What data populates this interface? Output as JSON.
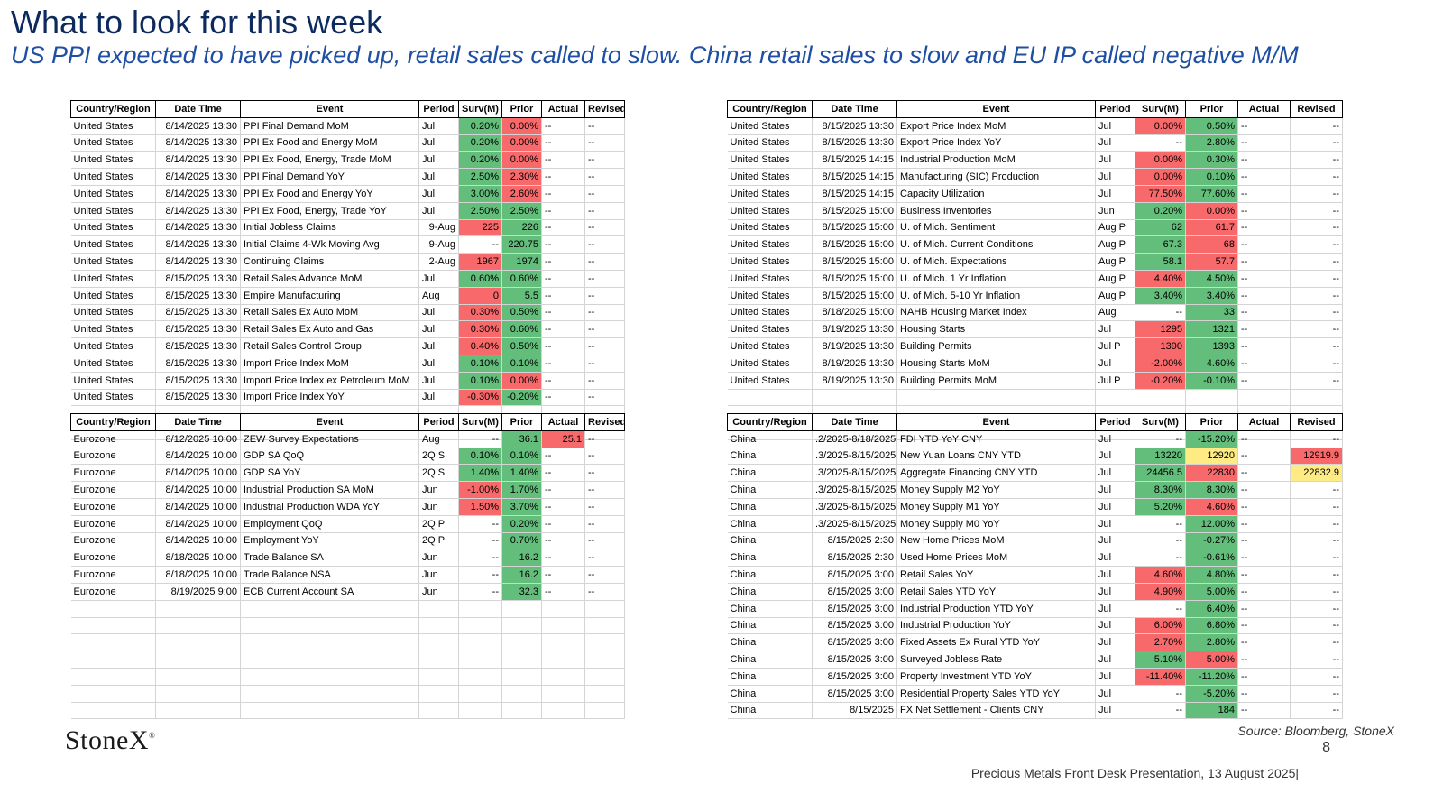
{
  "title": "What to look for this week",
  "subtitle": "US PPI expected to have picked up, retail sales called to slow.  China retail sales to slow and EU  IP called negative M/M",
  "headers": [
    "Country/Region",
    "Date Time",
    "Event",
    "Period",
    "Surv(M)",
    "Prior",
    "Actual",
    "Revised"
  ],
  "tables": {
    "top_left": [
      [
        "United States",
        "8/14/2025 13:30",
        "PPI Final Demand MoM",
        "Jul",
        "0.20%",
        "0.00%",
        "--",
        "--"
      ],
      [
        "United States",
        "8/14/2025 13:30",
        "PPI Ex Food and Energy MoM",
        "Jul",
        "0.20%",
        "0.00%",
        "--",
        "--"
      ],
      [
        "United States",
        "8/14/2025 13:30",
        "PPI Ex Food, Energy, Trade MoM",
        "Jul",
        "0.20%",
        "0.00%",
        "--",
        "--"
      ],
      [
        "United States",
        "8/14/2025 13:30",
        "PPI Final Demand YoY",
        "Jul",
        "2.50%",
        "2.30%",
        "--",
        "--"
      ],
      [
        "United States",
        "8/14/2025 13:30",
        "PPI Ex Food and Energy YoY",
        "Jul",
        "3.00%",
        "2.60%",
        "--",
        "--"
      ],
      [
        "United States",
        "8/14/2025 13:30",
        "PPI Ex Food, Energy, Trade YoY",
        "Jul",
        "2.50%",
        "2.50%",
        "--",
        "--"
      ],
      [
        "United States",
        "8/14/2025 13:30",
        "Initial Jobless Claims",
        "9-Aug",
        "225",
        "226",
        "--",
        "--"
      ],
      [
        "United States",
        "8/14/2025 13:30",
        "Initial Claims 4-Wk Moving Avg",
        "9-Aug",
        "--",
        "220.75",
        "--",
        "--"
      ],
      [
        "United States",
        "8/14/2025 13:30",
        "Continuing Claims",
        "2-Aug",
        "1967",
        "1974",
        "--",
        "--"
      ],
      [
        "United States",
        "8/15/2025 13:30",
        "Retail Sales Advance MoM",
        "Jul",
        "0.60%",
        "0.60%",
        "--",
        "--"
      ],
      [
        "United States",
        "8/15/2025 13:30",
        "Empire Manufacturing",
        "Aug",
        "0",
        "5.5",
        "--",
        "--"
      ],
      [
        "United States",
        "8/15/2025 13:30",
        "Retail Sales Ex Auto MoM",
        "Jul",
        "0.30%",
        "0.50%",
        "--",
        "--"
      ],
      [
        "United States",
        "8/15/2025 13:30",
        "Retail Sales Ex Auto and Gas",
        "Jul",
        "0.30%",
        "0.60%",
        "--",
        "--"
      ],
      [
        "United States",
        "8/15/2025 13:30",
        "Retail Sales Control Group",
        "Jul",
        "0.40%",
        "0.50%",
        "--",
        "--"
      ],
      [
        "United States",
        "8/15/2025 13:30",
        "Import Price Index MoM",
        "Jul",
        "0.10%",
        "0.10%",
        "--",
        "--"
      ],
      [
        "United States",
        "8/15/2025 13:30",
        "Import Price Index ex Petroleum MoM",
        "Jul",
        "0.10%",
        "0.00%",
        "--",
        "--"
      ],
      [
        "United States",
        "8/15/2025 13:30",
        "Import Price Index YoY",
        "Jul",
        "-0.30%",
        "-0.20%",
        "--",
        "--"
      ],
      [
        "",
        "",
        "",
        "",
        "",
        "",
        "",
        ""
      ],
      [
        "",
        "",
        "",
        "",
        "",
        "",
        "",
        ""
      ]
    ],
    "top_right": [
      [
        "United States",
        "8/15/2025 13:30",
        "Export Price Index MoM",
        "Jul",
        "0.00%",
        "0.50%",
        "--",
        "--"
      ],
      [
        "United States",
        "8/15/2025 13:30",
        "Export Price Index YoY",
        "Jul",
        "--",
        "2.80%",
        "--",
        "--"
      ],
      [
        "United States",
        "8/15/2025 14:15",
        "Industrial Production MoM",
        "Jul",
        "0.00%",
        "0.30%",
        "--",
        "--"
      ],
      [
        "United States",
        "8/15/2025 14:15",
        "Manufacturing (SIC) Production",
        "Jul",
        "0.00%",
        "0.10%",
        "--",
        "--"
      ],
      [
        "United States",
        "8/15/2025 14:15",
        "Capacity Utilization",
        "Jul",
        "77.50%",
        "77.60%",
        "--",
        "--"
      ],
      [
        "United States",
        "8/15/2025 15:00",
        "Business Inventories",
        "Jun",
        "0.20%",
        "0.00%",
        "--",
        "--"
      ],
      [
        "United States",
        "8/15/2025 15:00",
        "U. of Mich. Sentiment",
        "Aug P",
        "62",
        "61.7",
        "--",
        "--"
      ],
      [
        "United States",
        "8/15/2025 15:00",
        "U. of Mich. Current Conditions",
        "Aug P",
        "67.3",
        "68",
        "--",
        "--"
      ],
      [
        "United States",
        "8/15/2025 15:00",
        "U. of Mich. Expectations",
        "Aug P",
        "58.1",
        "57.7",
        "--",
        "--"
      ],
      [
        "United States",
        "8/15/2025 15:00",
        "U. of Mich. 1 Yr Inflation",
        "Aug P",
        "4.40%",
        "4.50%",
        "--",
        "--"
      ],
      [
        "United States",
        "8/15/2025 15:00",
        "U. of Mich. 5-10 Yr Inflation",
        "Aug P",
        "3.40%",
        "3.40%",
        "--",
        "--"
      ],
      [
        "United States",
        "8/18/2025 15:00",
        "NAHB Housing Market Index",
        "Aug",
        "--",
        "33",
        "--",
        "--"
      ],
      [
        "United States",
        "8/19/2025 13:30",
        "Housing Starts",
        "Jul",
        "1295",
        "1321",
        "--",
        "--"
      ],
      [
        "United States",
        "8/19/2025 13:30",
        "Building Permits",
        "Jul P",
        "1390",
        "1393",
        "--",
        "--"
      ],
      [
        "United States",
        "8/19/2025 13:30",
        "Housing Starts MoM",
        "Jul",
        "-2.00%",
        "4.60%",
        "--",
        "--"
      ],
      [
        "United States",
        "8/19/2025 13:30",
        "Building Permits MoM",
        "Jul P",
        "-0.20%",
        "-0.10%",
        "--",
        "--"
      ],
      [
        "",
        "",
        "",
        "",
        "",
        "",
        "",
        ""
      ],
      [
        "",
        "",
        "",
        "",
        "",
        "",
        "",
        ""
      ],
      [
        "",
        "",
        "",
        "",
        "",
        "",
        "",
        ""
      ]
    ],
    "bottom_left": [
      [
        "Eurozone",
        "8/12/2025 10:00",
        "ZEW Survey Expectations",
        "Aug",
        "--",
        "36.1",
        "25.1",
        "--"
      ],
      [
        "Eurozone",
        "8/14/2025 10:00",
        "GDP SA QoQ",
        "2Q S",
        "0.10%",
        "0.10%",
        "--",
        "--"
      ],
      [
        "Eurozone",
        "8/14/2025 10:00",
        "GDP SA YoY",
        "2Q S",
        "1.40%",
        "1.40%",
        "--",
        "--"
      ],
      [
        "Eurozone",
        "8/14/2025 10:00",
        "Industrial Production SA MoM",
        "Jun",
        "-1.00%",
        "1.70%",
        "--",
        "--"
      ],
      [
        "Eurozone",
        "8/14/2025 10:00",
        "Industrial Production WDA YoY",
        "Jun",
        "1.50%",
        "3.70%",
        "--",
        "--"
      ],
      [
        "Eurozone",
        "8/14/2025 10:00",
        "Employment QoQ",
        "2Q P",
        "--",
        "0.20%",
        "--",
        "--"
      ],
      [
        "Eurozone",
        "8/14/2025 10:00",
        "Employment YoY",
        "2Q P",
        "--",
        "0.70%",
        "--",
        "--"
      ],
      [
        "Eurozone",
        "8/18/2025 10:00",
        "Trade Balance SA",
        "Jun",
        "--",
        "16.2",
        "--",
        "--"
      ],
      [
        "Eurozone",
        "8/18/2025 10:00",
        "Trade Balance NSA",
        "Jun",
        "--",
        "16.2",
        "--",
        "--"
      ],
      [
        "Eurozone",
        "8/19/2025 9:00",
        "ECB Current Account SA",
        "Jun",
        "--",
        "32.3",
        "--",
        "--"
      ],
      [
        "",
        "",
        "",
        "",
        "",
        "",
        "",
        ""
      ],
      [
        "",
        "",
        "",
        "",
        "",
        "",
        "",
        ""
      ],
      [
        "",
        "",
        "",
        "",
        "",
        "",
        "",
        ""
      ],
      [
        "",
        "",
        "",
        "",
        "",
        "",
        "",
        ""
      ],
      [
        "",
        "",
        "",
        "",
        "",
        "",
        "",
        ""
      ],
      [
        "",
        "",
        "",
        "",
        "",
        "",
        "",
        ""
      ],
      [
        "",
        "",
        "",
        "",
        "",
        "",
        "",
        ""
      ]
    ],
    "bottom_right": [
      [
        "China",
        ".2/2025-8/18/2025",
        "FDI YTD YoY CNY",
        "Jul",
        "--",
        "-15.20%",
        "--",
        "--"
      ],
      [
        "China",
        ".3/2025-8/15/2025",
        "New Yuan Loans CNY YTD",
        "Jul",
        "13220",
        "12920",
        "--",
        "12919.9"
      ],
      [
        "China",
        ".3/2025-8/15/2025",
        "Aggregate Financing CNY YTD",
        "Jul",
        "24456.5",
        "22830",
        "--",
        "22832.9"
      ],
      [
        "China",
        ".3/2025-8/15/2025",
        "Money Supply M2 YoY",
        "Jul",
        "8.30%",
        "8.30%",
        "--",
        "--"
      ],
      [
        "China",
        ".3/2025-8/15/2025",
        "Money Supply M1 YoY",
        "Jul",
        "5.20%",
        "4.60%",
        "--",
        "--"
      ],
      [
        "China",
        ".3/2025-8/15/2025",
        "Money Supply M0 YoY",
        "Jul",
        "--",
        "12.00%",
        "--",
        "--"
      ],
      [
        "China",
        "8/15/2025 2:30",
        "New Home Prices MoM",
        "Jul",
        "--",
        "-0.27%",
        "--",
        "--"
      ],
      [
        "China",
        "8/15/2025 2:30",
        "Used Home Prices MoM",
        "Jul",
        "--",
        "-0.61%",
        "--",
        "--"
      ],
      [
        "China",
        "8/15/2025 3:00",
        "Retail Sales YoY",
        "Jul",
        "4.60%",
        "4.80%",
        "--",
        "--"
      ],
      [
        "China",
        "8/15/2025 3:00",
        "Retail Sales YTD YoY",
        "Jul",
        "4.90%",
        "5.00%",
        "--",
        "--"
      ],
      [
        "China",
        "8/15/2025 3:00",
        "Industrial Production YTD YoY",
        "Jul",
        "--",
        "6.40%",
        "--",
        "--"
      ],
      [
        "China",
        "8/15/2025 3:00",
        "Industrial Production YoY",
        "Jul",
        "6.00%",
        "6.80%",
        "--",
        "--"
      ],
      [
        "China",
        "8/15/2025 3:00",
        "Fixed Assets Ex Rural YTD YoY",
        "Jul",
        "2.70%",
        "2.80%",
        "--",
        "--"
      ],
      [
        "China",
        "8/15/2025 3:00",
        "Surveyed Jobless Rate",
        "Jul",
        "5.10%",
        "5.00%",
        "--",
        "--"
      ],
      [
        "China",
        "8/15/2025 3:00",
        "Property Investment YTD YoY",
        "Jul",
        "-11.40%",
        "-11.20%",
        "--",
        "--"
      ],
      [
        "China",
        "8/15/2025 3:00",
        "Residential Property Sales YTD YoY",
        "Jul",
        "--",
        "-5.20%",
        "--",
        "--"
      ],
      [
        "China",
        "8/15/2025",
        "FX Net Settlement - Clients CNY",
        "Jul",
        "--",
        "184",
        "--",
        "--"
      ]
    ]
  },
  "cell_colors": {
    "top_left": [
      [
        "g",
        "rd"
      ],
      [
        "g",
        "rd"
      ],
      [
        "g",
        "rd"
      ],
      [
        "g",
        "rd"
      ],
      [
        "g",
        "rd"
      ],
      [
        "g",
        "g"
      ],
      [
        "rd",
        "g"
      ],
      [
        "",
        "g"
      ],
      [
        "rd",
        "g"
      ],
      [
        "g",
        "g"
      ],
      [
        "rd",
        "g"
      ],
      [
        "rd",
        "g"
      ],
      [
        "rd",
        "g"
      ],
      [
        "rd",
        "g"
      ],
      [
        "g",
        "g"
      ],
      [
        "g",
        "rd"
      ],
      [
        "rd",
        "g"
      ],
      [
        "",
        ""
      ],
      [
        "",
        ""
      ]
    ],
    "top_right": [
      [
        "rd",
        "g"
      ],
      [
        "",
        "g"
      ],
      [
        "rd",
        "g"
      ],
      [
        "rd",
        "g"
      ],
      [
        "rd",
        "g"
      ],
      [
        "g",
        "rd"
      ],
      [
        "g",
        "rd"
      ],
      [
        "g",
        "rd"
      ],
      [
        "g",
        "rd"
      ],
      [
        "rd",
        "g"
      ],
      [
        "g",
        "g"
      ],
      [
        "",
        "g"
      ],
      [
        "rd",
        "g"
      ],
      [
        "rd",
        "g"
      ],
      [
        "rd",
        "g"
      ],
      [
        "rd",
        "g"
      ],
      [
        "",
        ""
      ],
      [
        "",
        ""
      ],
      [
        "",
        ""
      ]
    ],
    "bottom_left": [
      [
        "",
        "g",
        "rd",
        ""
      ],
      [
        "g",
        "g",
        "",
        ""
      ],
      [
        "g",
        "g",
        "",
        ""
      ],
      [
        "rd",
        "g",
        "",
        ""
      ],
      [
        "rd",
        "g",
        "",
        ""
      ],
      [
        "",
        "g",
        "",
        ""
      ],
      [
        "",
        "g",
        "",
        ""
      ],
      [
        "",
        "g",
        "",
        ""
      ],
      [
        "",
        "g",
        "",
        ""
      ],
      [
        "",
        "g",
        "",
        ""
      ],
      [
        "",
        "",
        "",
        ""
      ],
      [
        "",
        "",
        "",
        ""
      ],
      [
        "",
        "",
        "",
        ""
      ],
      [
        "",
        "",
        "",
        ""
      ],
      [
        "",
        "",
        "",
        ""
      ],
      [
        "",
        "",
        "",
        ""
      ],
      [
        "",
        "",
        "",
        ""
      ]
    ],
    "bottom_right": [
      [
        "",
        "g",
        "",
        ""
      ],
      [
        "g",
        "y",
        "",
        "rd"
      ],
      [
        "g",
        "rd",
        "",
        "y"
      ],
      [
        "g",
        "g",
        "",
        ""
      ],
      [
        "g",
        "rd",
        "",
        ""
      ],
      [
        "",
        "g",
        "",
        ""
      ],
      [
        "",
        "g",
        "",
        ""
      ],
      [
        "",
        "g",
        "",
        ""
      ],
      [
        "rd",
        "g",
        "",
        ""
      ],
      [
        "rd",
        "g",
        "",
        ""
      ],
      [
        "",
        "g",
        "",
        ""
      ],
      [
        "rd",
        "g",
        "",
        ""
      ],
      [
        "rd",
        "g",
        "",
        ""
      ],
      [
        "g",
        "rd",
        "",
        ""
      ],
      [
        "rd",
        "g",
        "",
        ""
      ],
      [
        "",
        "g",
        "",
        ""
      ],
      [
        "",
        "g",
        "",
        ""
      ]
    ]
  },
  "footer": {
    "logo": "StoneX",
    "logo_mark": "®",
    "source": "Source: Bloomberg, StoneX",
    "page_number": "8",
    "presentation": "Precious Metals Front Desk Presentation, 13 August 2025|"
  }
}
